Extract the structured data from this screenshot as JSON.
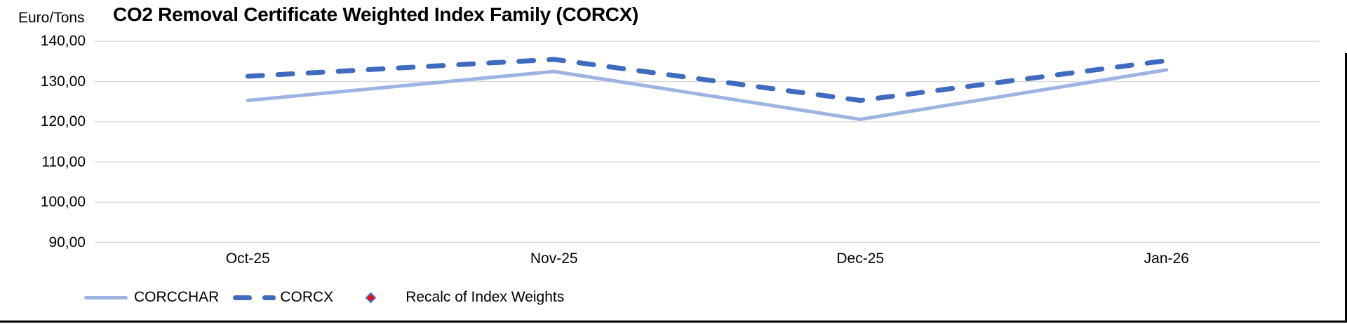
{
  "header": {
    "title": "CO2 Removal Certificate Weighted Index Family (CORCX)",
    "y_axis_unit": "Euro/Tons"
  },
  "colors": {
    "corcchar_line": "#9DB4E2",
    "corcx_line": "#3E6BBF",
    "recalc_marker_fill": "#FF0000",
    "recalc_marker_border": "#4472C4",
    "gridline": "#D9D9D9",
    "text": "#000000",
    "background": "#FFFFFF"
  },
  "chart_data": {
    "type": "line",
    "title": "CO2 Removal Certificate Weighted Index Family (CORCX)",
    "xlabel": "",
    "ylabel": "Euro/Tons",
    "categories": [
      "Oct-25",
      "Nov-25",
      "Dec-25",
      "Jan-26"
    ],
    "series": [
      {
        "name": "CORCCHAR",
        "style": "solid",
        "color": "#9DB4E2",
        "values": [
          125.3,
          132.5,
          120.6,
          132.9
        ]
      },
      {
        "name": "CORCX",
        "style": "dashed",
        "color": "#3E6BBF",
        "values": [
          131.3,
          135.5,
          125.3,
          135.2
        ]
      }
    ],
    "y_ticks": [
      {
        "label": "140,00",
        "value": 140
      },
      {
        "label": "130,00",
        "value": 130
      },
      {
        "label": "120,00",
        "value": 120
      },
      {
        "label": "110,00",
        "value": 110
      },
      {
        "label": "100,00",
        "value": 100
      },
      {
        "label": "90,00",
        "value": 90
      }
    ],
    "ylim": [
      90,
      140
    ],
    "grid": true,
    "legend_position": "bottom"
  },
  "legend": {
    "items": [
      {
        "label": "CORCCHAR",
        "marker": "solid-line"
      },
      {
        "label": "CORCX",
        "marker": "dashed-line"
      },
      {
        "label": "Recalc of Index Weights",
        "marker": "red-diamond"
      }
    ]
  }
}
